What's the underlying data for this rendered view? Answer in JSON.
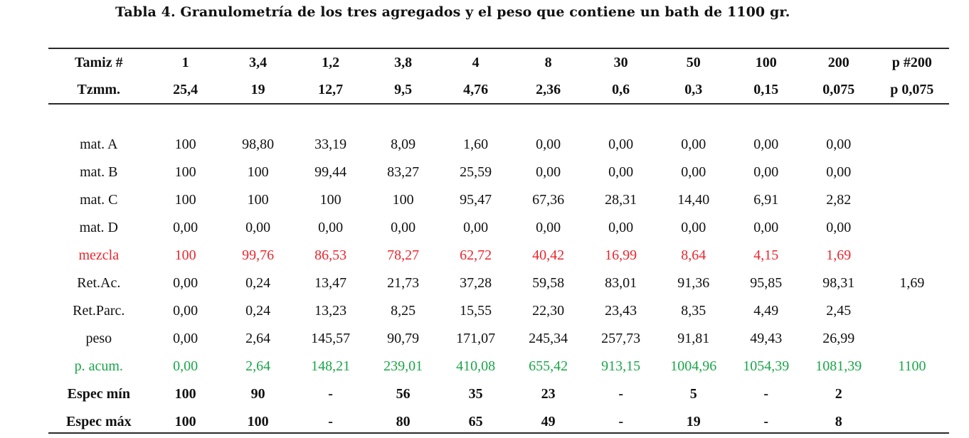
{
  "caption": "Tabla  4. Granulometría de los tres agregados y el peso que contiene un bath de 1100 gr.",
  "colors": {
    "mezcla": "#e8262e",
    "p_acum": "#1aa548"
  },
  "header_rows": [
    {
      "label": "Tamiz  #",
      "cells": [
        "1",
        "3,4",
        "1,2",
        "3,8",
        "4",
        "8",
        "30",
        "50",
        "100",
        "200",
        "p #200"
      ]
    },
    {
      "label": "Tzmm.",
      "cells": [
        "25,4",
        "19",
        "12,7",
        "9,5",
        "4,76",
        "2,36",
        "0,6",
        "0,3",
        "0,15",
        "0,075",
        "p 0,075"
      ]
    }
  ],
  "body_rows": [
    {
      "label": "mat. A",
      "style": "normal",
      "cells": [
        "100",
        "98,80",
        "33,19",
        "8,09",
        "1,60",
        "0,00",
        "0,00",
        "0,00",
        "0,00",
        "0,00",
        ""
      ]
    },
    {
      "label": "mat. B",
      "style": "normal",
      "cells": [
        "100",
        "100",
        "99,44",
        "83,27",
        "25,59",
        "0,00",
        "0,00",
        "0,00",
        "0,00",
        "0,00",
        ""
      ]
    },
    {
      "label": "mat. C",
      "style": "normal",
      "cells": [
        "100",
        "100",
        "100",
        "100",
        "95,47",
        "67,36",
        "28,31",
        "14,40",
        "6,91",
        "2,82",
        ""
      ]
    },
    {
      "label": "mat. D",
      "style": "normal",
      "cells": [
        "0,00",
        "0,00",
        "0,00",
        "0,00",
        "0,00",
        "0,00",
        "0,00",
        "0,00",
        "0,00",
        "0,00",
        ""
      ]
    },
    {
      "label": "mezcla",
      "style": "red",
      "cells": [
        "100",
        "99,76",
        "86,53",
        "78,27",
        "62,72",
        "40,42",
        "16,99",
        "8,64",
        "4,15",
        "1,69",
        ""
      ]
    },
    {
      "label": "Ret.Ac.",
      "style": "normal",
      "cells": [
        "0,00",
        "0,24",
        "13,47",
        "21,73",
        "37,28",
        "59,58",
        "83,01",
        "91,36",
        "95,85",
        "98,31",
        "1,69"
      ]
    },
    {
      "label": "Ret.Parc.",
      "style": "normal",
      "cells": [
        "0,00",
        "0,24",
        "13,23",
        "8,25",
        "15,55",
        "22,30",
        "23,43",
        "8,35",
        "4,49",
        "2,45",
        ""
      ]
    },
    {
      "label": "peso",
      "style": "normal",
      "cells": [
        "0,00",
        "2,64",
        "145,57",
        "90,79",
        "171,07",
        "245,34",
        "257,73",
        "91,81",
        "49,43",
        "26,99",
        ""
      ]
    },
    {
      "label": "p. acum.",
      "style": "green",
      "cells": [
        "0,00",
        "2,64",
        "148,21",
        "239,01",
        "410,08",
        "655,42",
        "913,15",
        "1004,96",
        "1054,39",
        "1081,39",
        "1100"
      ]
    },
    {
      "label": "Espec mín",
      "style": "spec",
      "cells": [
        "100",
        "90",
        "-",
        "56",
        "35",
        "23",
        "-",
        "5",
        "-",
        "2",
        ""
      ]
    },
    {
      "label": "Espec máx",
      "style": "spec",
      "cells": [
        "100",
        "100",
        "-",
        "80",
        "65",
        "49",
        "-",
        "19",
        "-",
        "8",
        ""
      ]
    }
  ]
}
